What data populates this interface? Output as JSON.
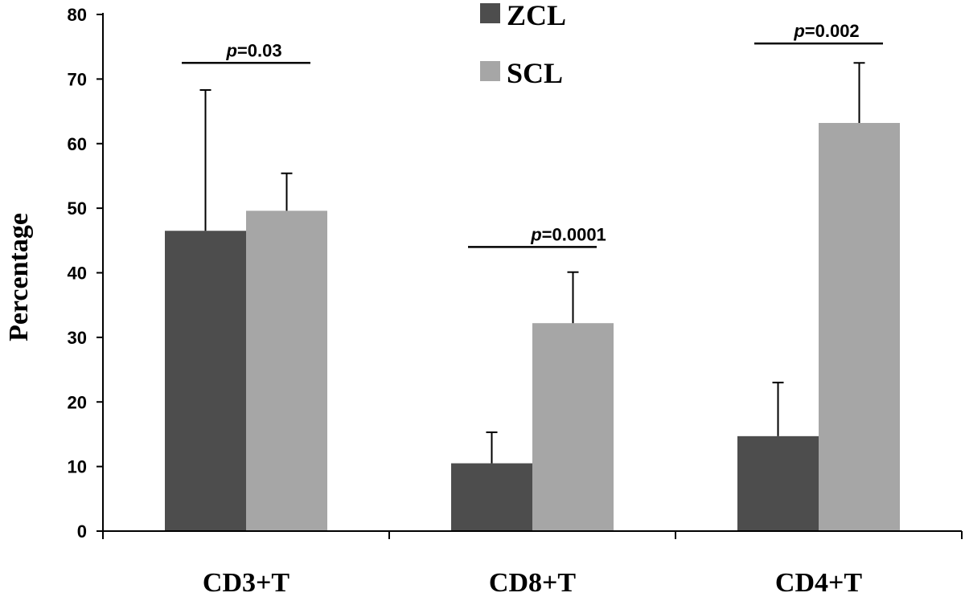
{
  "chart_data": {
    "type": "bar",
    "title": "",
    "xlabel": "",
    "ylabel": "Percentage",
    "ylim": [
      0,
      80
    ],
    "yticks": [
      0,
      10,
      20,
      30,
      40,
      50,
      60,
      70,
      80
    ],
    "categories": [
      "CD3+T",
      "CD8+T",
      "CD4+T"
    ],
    "series": [
      {
        "name": "ZCL",
        "color": "#4d4d4d",
        "values": [
          46.5,
          10.5,
          14.7
        ],
        "errors": [
          21.8,
          4.8,
          8.3
        ]
      },
      {
        "name": "SCL",
        "color": "#a6a6a6",
        "values": [
          49.6,
          32.2,
          63.2
        ],
        "errors": [
          5.8,
          7.9,
          9.3
        ]
      }
    ],
    "legend_position": "top-center",
    "annotations": [
      {
        "category": "CD3+T",
        "prefix": "p",
        "text": "=0.03",
        "level": 72.5
      },
      {
        "category": "CD8+T",
        "prefix": "p",
        "text": "=0.0001",
        "level": 44.0
      },
      {
        "category": "CD4+T",
        "prefix": "p",
        "text": "=0.002",
        "level": 75.5
      }
    ]
  }
}
